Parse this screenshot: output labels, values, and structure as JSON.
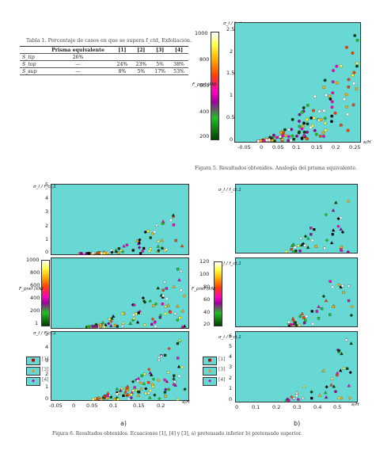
{
  "table1": {
    "title": "Tabla 1. Porcentaje de casos en que se supera f_ctd, Exfoliación.",
    "headers": [
      "",
      "Prisma equivalente",
      "[1]",
      "[2]",
      "[3]",
      "[4]"
    ],
    "rows": [
      {
        "label": "S_tip",
        "values": [
          "26%",
          "",
          "",
          "",
          ""
        ]
      },
      {
        "label": "S_top",
        "values": [
          "---",
          "24%",
          "23%",
          "5%",
          "38%"
        ]
      },
      {
        "label": "S_sup",
        "values": [
          "---",
          "8%",
          "5%",
          "17%",
          "53%"
        ]
      }
    ]
  },
  "fig5": {
    "caption": "Figura 5. Resultados obtenidos. Analogía del prisma equivalente.",
    "colorbar_label": "F_pref (kN)",
    "colorbar_ticks": [
      "1000",
      "800",
      "600",
      "400",
      "200"
    ],
    "y_label": "σ_I / f_ct",
    "x_label": "e/H",
    "x_ticks": [
      "-0.05",
      "0",
      "0.05",
      "0.1",
      "0.15",
      "0.2",
      "0.25"
    ],
    "y_ticks": [
      "2.5",
      "2",
      "1.5",
      "1",
      "0.5",
      "0"
    ]
  },
  "fig6": {
    "caption": "Figura 6. Resultados obtenidos. Ecuaciones [1], [4] y [3], a) pretensado inferior b) pretensado superior.",
    "label_a": "a)",
    "label_b": "b)",
    "left_colorbar_label": "F_pref (kN)",
    "left_colorbar_ticks": [
      "1000",
      "800",
      "600",
      "400",
      "200",
      "1"
    ],
    "right_colorbar_label": "F_pref (kN)",
    "right_colorbar_ticks": [
      "120",
      "100",
      "80",
      "60",
      "40",
      "20"
    ],
    "left_x_ticks": [
      "-0.05",
      "0",
      "0.05",
      "0.1",
      "0.15",
      "0.2"
    ],
    "right_x_ticks": [
      "0",
      "0.1",
      "0.2",
      "0.3",
      "0.4",
      "0.5"
    ],
    "left_y_ticks": [
      "5",
      "4",
      "3",
      "2",
      "1",
      "0"
    ],
    "right_y_ticks_top": [
      "5",
      "4",
      "3",
      "2",
      "1",
      "0"
    ],
    "right_y_ticks_bottom": [
      "6",
      "5",
      "4",
      "3",
      "2",
      "1",
      "0"
    ],
    "y_labels_left": [
      "σ_I / f_ct,1",
      "σ_I / f_ct,1",
      "σ_I / f_ct,1"
    ],
    "y_labels_right": [
      "σ_I / f_ct,1",
      "σ_I / f_ct,1",
      "σ_I / f_ct,1"
    ],
    "x_label": "e/H",
    "legend": [
      "[1]",
      "[3]",
      "[4]"
    ]
  }
}
